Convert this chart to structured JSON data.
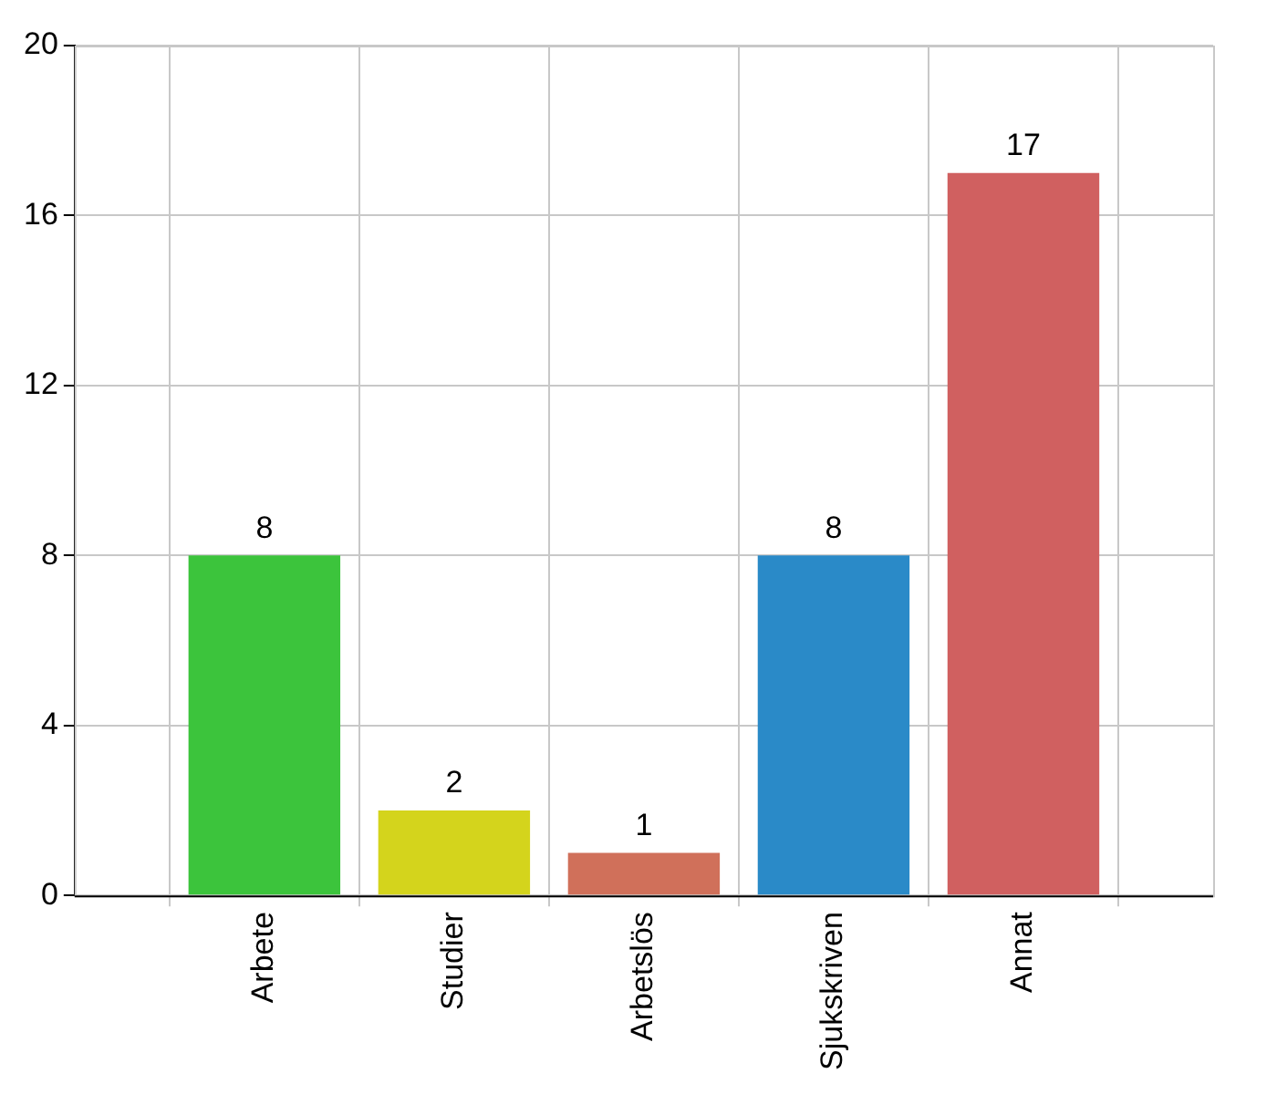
{
  "chart_data": {
    "type": "bar",
    "categories": [
      "Arbete",
      "Studier",
      "Arbetslös",
      "Sjukskriven",
      "Annat"
    ],
    "values": [
      8,
      2,
      1,
      8,
      17
    ],
    "colors": [
      "#3cc43c",
      "#d4d41c",
      "#d0705a",
      "#2a8ac8",
      "#d06060"
    ],
    "ylim": [
      0,
      20
    ],
    "yticks": [
      0,
      4,
      8,
      12,
      16,
      20
    ],
    "grid": true,
    "data_labels": true
  }
}
